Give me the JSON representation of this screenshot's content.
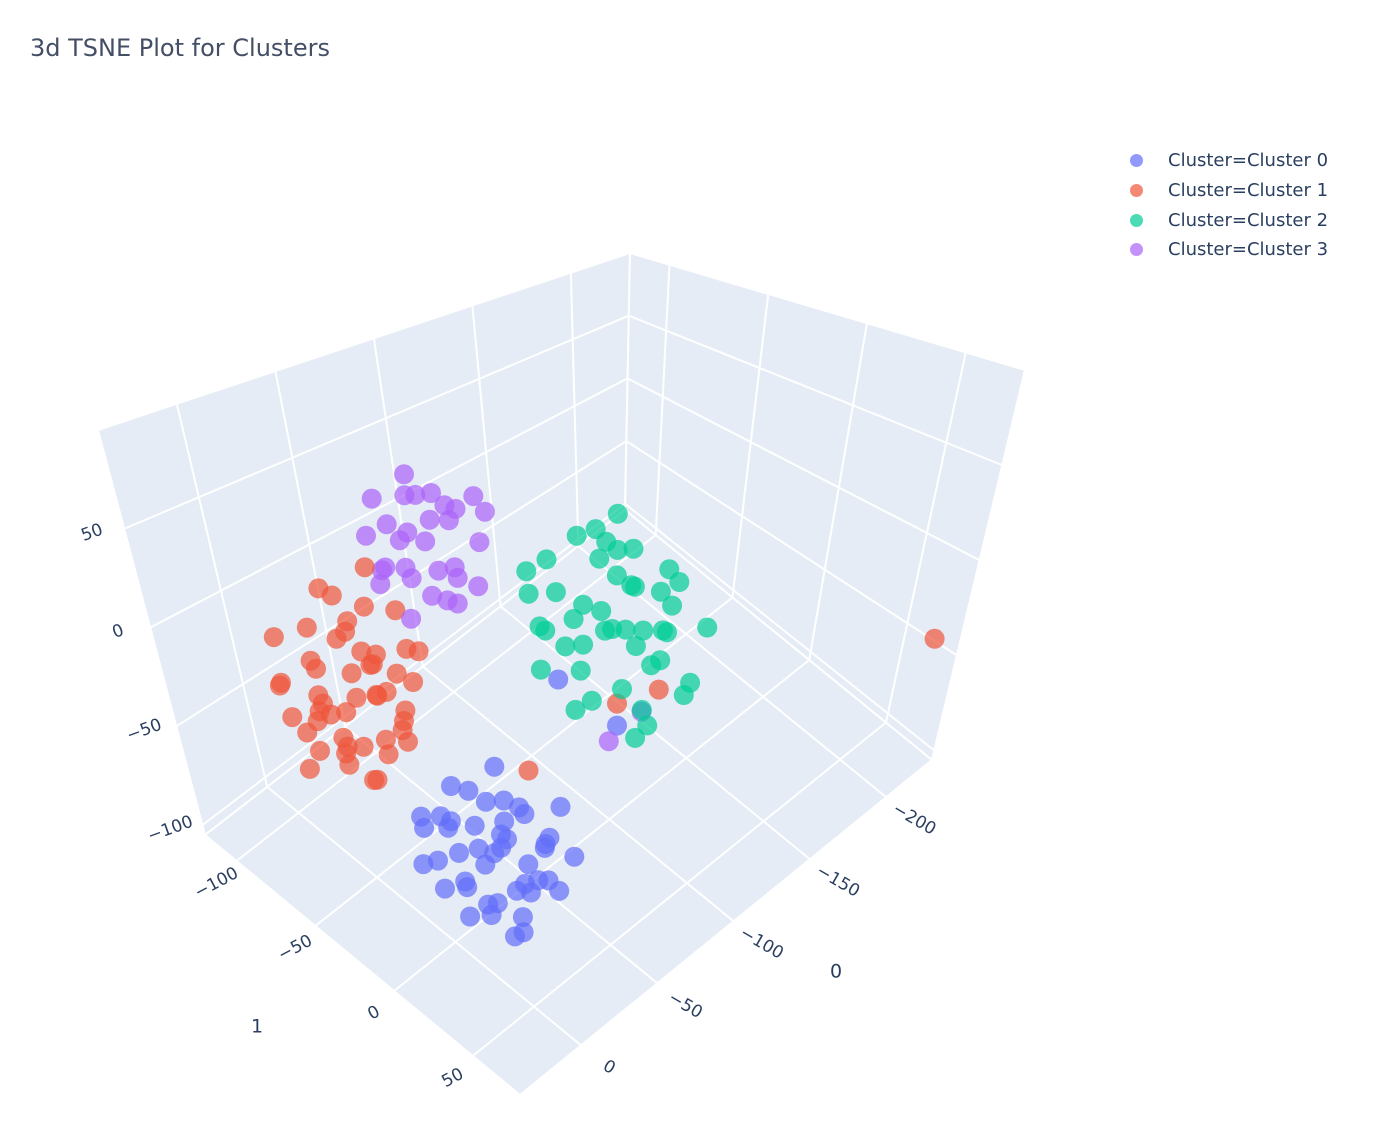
{
  "chart_data": {
    "type": "scatter3d",
    "title": "3d TSNE Plot for Clusters",
    "axes": {
      "x": {
        "title": "1",
        "range": [
          -120,
          80
        ],
        "ticks": [
          -100,
          -50,
          0,
          50
        ]
      },
      "y": {
        "title": "0",
        "range": [
          -230,
          40
        ],
        "ticks": [
          -200,
          -150,
          -100,
          -50,
          0
        ]
      },
      "z": {
        "title": "",
        "range": [
          -105,
          100
        ],
        "ticks": [
          -100,
          -50,
          0,
          50
        ]
      }
    },
    "grid": true,
    "legend_position": "top-right",
    "series": [
      {
        "name": "Cluster=Cluster 0",
        "color": "#636efa",
        "points": [
          [
            0,
            -28,
            -80
          ],
          [
            -20,
            -20,
            -75
          ],
          [
            20,
            -35,
            -85
          ],
          [
            -10,
            -45,
            -70
          ],
          [
            15,
            -10,
            -90
          ],
          [
            -25,
            -40,
            -88
          ],
          [
            5,
            -5,
            -78
          ],
          [
            25,
            -25,
            -70
          ],
          [
            -15,
            -10,
            -95
          ],
          [
            10,
            -50,
            -82
          ],
          [
            -5,
            -30,
            -60
          ],
          [
            30,
            -15,
            -92
          ],
          [
            -30,
            -25,
            -78
          ],
          [
            8,
            -38,
            -95
          ],
          [
            -12,
            -15,
            -65
          ],
          [
            18,
            -45,
            -72
          ],
          [
            -22,
            -5,
            -85
          ],
          [
            2,
            -20,
            -98
          ],
          [
            28,
            -40,
            -88
          ],
          [
            -8,
            -52,
            -76
          ],
          [
            12,
            -22,
            -62
          ],
          [
            -18,
            -35,
            -92
          ],
          [
            22,
            -8,
            -80
          ],
          [
            -28,
            -12,
            -70
          ],
          [
            6,
            -42,
            -66
          ],
          [
            -2,
            -12,
            -88
          ],
          [
            16,
            -28,
            -100
          ],
          [
            -14,
            -48,
            -84
          ],
          [
            32,
            -30,
            -76
          ],
          [
            -26,
            -30,
            -96
          ],
          [
            4,
            -55,
            -90
          ],
          [
            -6,
            0,
            -72
          ],
          [
            14,
            2,
            -85
          ],
          [
            -34,
            -18,
            -82
          ],
          [
            26,
            -52,
            -80
          ],
          [
            -10,
            -25,
            -55
          ],
          [
            10,
            -60,
            -70
          ],
          [
            20,
            -18,
            -58
          ],
          [
            -20,
            -50,
            -62
          ],
          [
            0,
            -40,
            -104
          ],
          [
            35,
            -5,
            -86
          ],
          [
            -36,
            -38,
            -74
          ],
          [
            8,
            -15,
            -74
          ],
          [
            -4,
            -36,
            -84
          ],
          [
            18,
            -32,
            -90
          ],
          [
            -20,
            -90,
            -40
          ],
          [
            5,
            -100,
            -55
          ]
        ]
      },
      {
        "name": "Cluster=Cluster 1",
        "color": "#EF553B",
        "points": [
          [
            -82,
            -10,
            -5
          ],
          [
            -75,
            -20,
            10
          ],
          [
            -70,
            -5,
            -40
          ],
          [
            -65,
            -30,
            -20
          ],
          [
            -58,
            0,
            -50
          ],
          [
            -50,
            -15,
            -10
          ],
          [
            -45,
            -25,
            -35
          ],
          [
            -88,
            5,
            -30
          ],
          [
            -90,
            -15,
            -55
          ],
          [
            -72,
            10,
            -60
          ],
          [
            -62,
            -8,
            0
          ],
          [
            -55,
            -35,
            5
          ],
          [
            -48,
            -5,
            -60
          ],
          [
            -40,
            -20,
            -45
          ],
          [
            -80,
            -28,
            -15
          ],
          [
            -68,
            -18,
            -25
          ],
          [
            -60,
            -12,
            -30
          ],
          [
            -52,
            -22,
            -28
          ],
          [
            -66,
            2,
            -12
          ],
          [
            -76,
            -2,
            -45
          ],
          [
            -85,
            -22,
            8
          ],
          [
            -44,
            -10,
            -20
          ],
          [
            -38,
            -30,
            -5
          ],
          [
            -70,
            -35,
            20
          ],
          [
            -57,
            -40,
            -18
          ],
          [
            -63,
            15,
            -35
          ],
          [
            -78,
            12,
            -20
          ],
          [
            -92,
            0,
            -10
          ],
          [
            -50,
            5,
            -40
          ],
          [
            -42,
            -2,
            -55
          ],
          [
            -35,
            -15,
            -30
          ],
          [
            -60,
            -25,
            -65
          ],
          [
            -72,
            -12,
            -70
          ],
          [
            -54,
            -18,
            15
          ],
          [
            -66,
            -28,
            -40
          ],
          [
            -46,
            -32,
            -25
          ],
          [
            -82,
            -5,
            -65
          ],
          [
            -58,
            8,
            -22
          ],
          [
            -68,
            -8,
            -52
          ],
          [
            -74,
            -25,
            -5
          ],
          [
            -48,
            -12,
            -8
          ],
          [
            -40,
            -8,
            -38
          ],
          [
            -62,
            -20,
            -12
          ],
          [
            -56,
            -2,
            -30
          ],
          [
            -80,
            8,
            -40
          ],
          [
            -52,
            -28,
            -50
          ],
          [
            -64,
            -15,
            -58
          ],
          [
            -70,
            0,
            -28
          ],
          [
            -86,
            -12,
            -25
          ],
          [
            -44,
            -22,
            -15
          ],
          [
            -5,
            -110,
            -55
          ],
          [
            10,
            -120,
            -45
          ],
          [
            -20,
            -70,
            -75
          ],
          [
            70,
            -225,
            -44
          ]
        ]
      },
      {
        "name": "Cluster=Cluster 2",
        "color": "#00cc96",
        "points": [
          [
            -10,
            -108,
            -19
          ],
          [
            -30,
            -100,
            -5
          ],
          [
            10,
            -115,
            -30
          ],
          [
            -20,
            -125,
            10
          ],
          [
            0,
            -90,
            -40
          ],
          [
            -35,
            -120,
            -25
          ],
          [
            15,
            -95,
            0
          ],
          [
            -5,
            -135,
            -10
          ],
          [
            -25,
            -85,
            -35
          ],
          [
            20,
            -125,
            -45
          ],
          [
            -15,
            -110,
            15
          ],
          [
            5,
            -100,
            20
          ],
          [
            -40,
            -105,
            5
          ],
          [
            25,
            -105,
            -15
          ],
          [
            -10,
            -90,
            -50
          ],
          [
            10,
            -130,
            5
          ],
          [
            -28,
            -130,
            -40
          ],
          [
            -2,
            -118,
            -28
          ],
          [
            -18,
            -98,
            -12
          ],
          [
            12,
            -108,
            -8
          ],
          [
            -32,
            -92,
            -20
          ],
          [
            30,
            -118,
            -30
          ],
          [
            -8,
            -140,
            -35
          ],
          [
            2,
            -82,
            -20
          ],
          [
            -22,
            -115,
            25
          ],
          [
            18,
            -90,
            -25
          ],
          [
            -12,
            -125,
            -5
          ],
          [
            8,
            -112,
            -52
          ],
          [
            -38,
            -112,
            -45
          ],
          [
            -4,
            -100,
            -2
          ],
          [
            22,
            -135,
            -15
          ],
          [
            -26,
            -140,
            0
          ],
          [
            14,
            -120,
            18
          ],
          [
            -16,
            -80,
            -8
          ],
          [
            -6,
            -105,
            30
          ],
          [
            28,
            -95,
            -40
          ],
          [
            -34,
            -88,
            10
          ],
          [
            6,
            -128,
            -22
          ],
          [
            -20,
            -105,
            -30
          ],
          [
            0,
            -115,
            5
          ],
          [
            16,
            -100,
            -55
          ],
          [
            -12,
            -95,
            35
          ],
          [
            -30,
            -135,
            20
          ],
          [
            24,
            -112,
            8
          ],
          [
            -44,
            -98,
            -12
          ]
        ]
      },
      {
        "name": "Cluster=Cluster 3",
        "color": "#ab63fa",
        "points": [
          [
            -54,
            -54,
            32
          ],
          [
            -65,
            -45,
            40
          ],
          [
            -45,
            -60,
            20
          ],
          [
            -60,
            -65,
            50
          ],
          [
            -48,
            -40,
            45
          ],
          [
            -70,
            -55,
            25
          ],
          [
            -40,
            -50,
            10
          ],
          [
            -55,
            -70,
            5
          ],
          [
            -62,
            -35,
            15
          ],
          [
            -50,
            -48,
            60
          ],
          [
            -35,
            -65,
            35
          ],
          [
            -72,
            -62,
            45
          ],
          [
            -58,
            -58,
            0
          ],
          [
            -44,
            -72,
            52
          ],
          [
            -66,
            -40,
            55
          ],
          [
            -52,
            -30,
            30
          ],
          [
            -38,
            -45,
            28
          ],
          [
            -60,
            -50,
            12
          ],
          [
            -48,
            -62,
            42
          ],
          [
            -56,
            -44,
            22
          ],
          [
            -68,
            -70,
            30
          ],
          [
            -42,
            -55,
            55
          ],
          [
            -30,
            -58,
            18
          ],
          [
            -75,
            -48,
            10
          ],
          [
            -46,
            -35,
            5
          ],
          [
            -58,
            -75,
            38
          ],
          [
            -64,
            -56,
            62
          ],
          [
            -36,
            -70,
            48
          ],
          [
            -52,
            -66,
            -5
          ],
          [
            -70,
            -38,
            35
          ],
          [
            0,
            -120,
            -62
          ],
          [
            5,
            -95,
            -60
          ]
        ]
      }
    ]
  }
}
